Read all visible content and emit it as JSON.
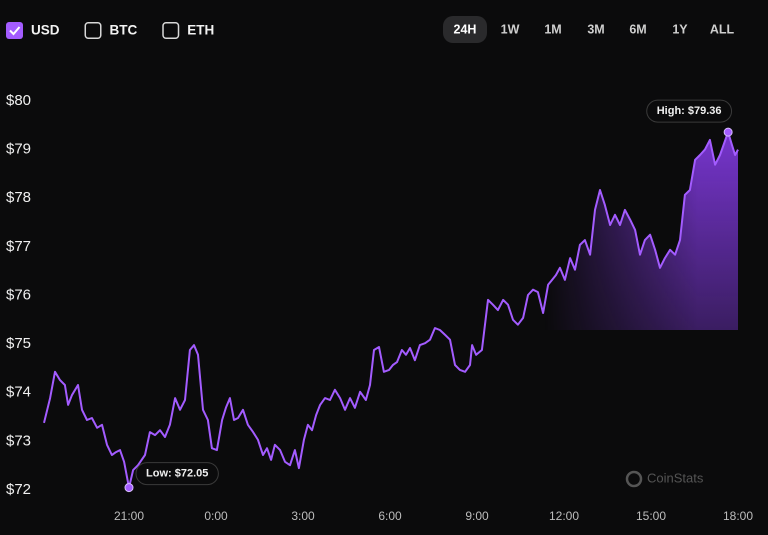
{
  "currencies": [
    {
      "label": "USD",
      "checked": true
    },
    {
      "label": "BTC",
      "checked": false
    },
    {
      "label": "ETH",
      "checked": false
    }
  ],
  "ranges": [
    "24H",
    "1W",
    "1M",
    "3M",
    "6M",
    "1Y",
    "ALL"
  ],
  "selected_range": "24H",
  "watermark": "CoinStats",
  "chart_data": {
    "type": "area",
    "color": "#a35cff",
    "xlim": [
      18,
      42
    ],
    "ylim": [
      72,
      80
    ],
    "yticks": [
      {
        "value": 72,
        "label": "$72"
      },
      {
        "value": 73,
        "label": "$73"
      },
      {
        "value": 74,
        "label": "$74"
      },
      {
        "value": 75,
        "label": "$75"
      },
      {
        "value": 76,
        "label": "$76"
      },
      {
        "value": 77,
        "label": "$77"
      },
      {
        "value": 78,
        "label": "$78"
      },
      {
        "value": 79,
        "label": "$79"
      },
      {
        "value": 80,
        "label": "$80"
      }
    ],
    "xticks": [
      {
        "value": 21,
        "label": "21:00"
      },
      {
        "value": 24,
        "label": "0:00"
      },
      {
        "value": 27,
        "label": "3:00"
      },
      {
        "value": 30,
        "label": "6:00"
      },
      {
        "value": 33,
        "label": "9:00"
      },
      {
        "value": 36,
        "label": "12:00"
      },
      {
        "value": 39,
        "label": "15:00"
      },
      {
        "value": 42,
        "label": "18:00"
      }
    ],
    "annotations": [
      {
        "text": "High: $79.36",
        "x": 41.66,
        "y": 79.36,
        "position": "above"
      },
      {
        "text": "Low: $72.05",
        "x": 21.0,
        "y": 72.05,
        "position": "right"
      }
    ],
    "x": [
      18.07,
      18.28,
      18.45,
      18.62,
      18.79,
      18.9,
      19.03,
      19.24,
      19.38,
      19.55,
      19.72,
      19.9,
      20.07,
      20.24,
      20.41,
      20.55,
      20.69,
      20.83,
      21.0,
      21.14,
      21.31,
      21.55,
      21.72,
      21.9,
      22.07,
      22.24,
      22.41,
      22.59,
      22.76,
      22.93,
      23.1,
      23.24,
      23.38,
      23.55,
      23.72,
      23.86,
      24.03,
      24.21,
      24.34,
      24.48,
      24.62,
      24.76,
      24.93,
      25.1,
      25.28,
      25.45,
      25.62,
      25.76,
      25.9,
      26.03,
      26.21,
      26.38,
      26.55,
      26.72,
      26.86,
      27.03,
      27.17,
      27.31,
      27.45,
      27.59,
      27.76,
      27.93,
      28.1,
      28.28,
      28.45,
      28.62,
      28.79,
      28.97,
      29.17,
      29.31,
      29.45,
      29.62,
      29.79,
      29.97,
      30.1,
      30.24,
      30.41,
      30.55,
      30.69,
      30.86,
      31.03,
      31.21,
      31.38,
      31.55,
      31.72,
      31.9,
      32.07,
      32.24,
      32.41,
      32.59,
      32.76,
      32.83,
      32.97,
      33.17,
      33.38,
      33.55,
      33.72,
      33.9,
      34.07,
      34.24,
      34.41,
      34.59,
      34.76,
      34.93,
      35.1,
      35.28,
      35.45,
      35.59,
      35.72,
      35.86,
      36.03,
      36.21,
      36.38,
      36.55,
      36.72,
      36.9,
      37.07,
      37.24,
      37.41,
      37.59,
      37.76,
      37.93,
      38.1,
      38.28,
      38.45,
      38.62,
      38.79,
      38.97,
      39.14,
      39.31,
      39.48,
      39.66,
      39.83,
      40.0,
      40.17,
      40.34,
      40.52,
      40.69,
      40.86,
      41.03,
      41.21,
      41.38,
      41.66,
      41.79,
      41.9,
      42.0
    ],
    "values": [
      73.38,
      73.89,
      74.43,
      74.26,
      74.16,
      73.75,
      73.95,
      74.16,
      73.65,
      73.44,
      73.48,
      73.28,
      73.34,
      72.93,
      72.72,
      72.78,
      72.82,
      72.58,
      72.05,
      72.41,
      72.51,
      72.72,
      73.19,
      73.13,
      73.23,
      73.09,
      73.34,
      73.89,
      73.65,
      73.85,
      74.88,
      74.98,
      74.78,
      73.65,
      73.44,
      72.86,
      72.82,
      73.44,
      73.69,
      73.89,
      73.44,
      73.48,
      73.65,
      73.34,
      73.19,
      73.03,
      72.72,
      72.86,
      72.62,
      72.93,
      72.82,
      72.58,
      72.51,
      72.82,
      72.45,
      73.03,
      73.34,
      73.23,
      73.54,
      73.75,
      73.89,
      73.85,
      74.06,
      73.89,
      73.65,
      73.89,
      73.69,
      74.02,
      73.85,
      74.16,
      74.88,
      74.94,
      74.43,
      74.47,
      74.57,
      74.63,
      74.88,
      74.78,
      74.92,
      74.67,
      74.98,
      75.02,
      75.09,
      75.33,
      75.29,
      75.19,
      75.09,
      74.57,
      74.47,
      74.43,
      74.57,
      74.98,
      74.78,
      74.88,
      75.91,
      75.81,
      75.7,
      75.91,
      75.81,
      75.5,
      75.4,
      75.54,
      76.01,
      76.12,
      76.07,
      75.64,
      76.22,
      76.32,
      76.42,
      76.57,
      76.32,
      76.77,
      76.53,
      77.04,
      77.14,
      76.84,
      77.76,
      78.17,
      77.86,
      77.45,
      77.66,
      77.45,
      77.76,
      77.56,
      77.35,
      76.84,
      77.14,
      77.25,
      76.94,
      76.57,
      76.77,
      76.94,
      76.84,
      77.14,
      78.07,
      78.17,
      78.79,
      78.89,
      79.0,
      79.2,
      78.69,
      78.89,
      79.36,
      79.1,
      78.89,
      79.0
    ]
  }
}
